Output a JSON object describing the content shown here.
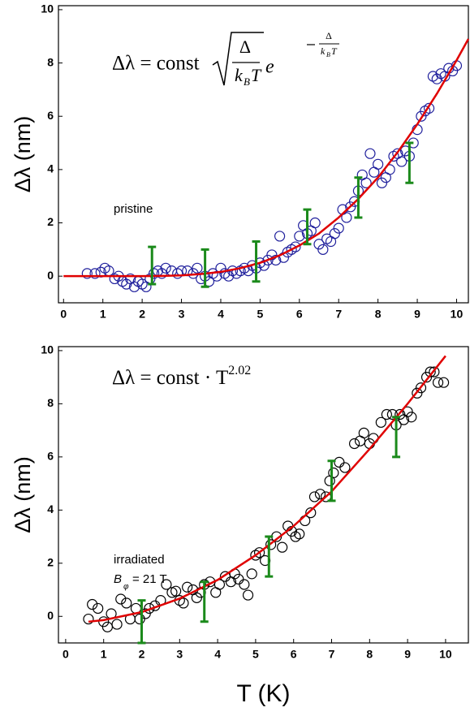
{
  "chart_data": [
    {
      "type": "scatter",
      "ylabel": "Δλ (nm)",
      "annotations": {
        "sample": "pristine",
        "lhs": "Δλ = const",
        "num": "Δ",
        "den_k": "k",
        "den_b": "B",
        "den_t": "T",
        "exp_base": "e",
        "exp_num": "Δ",
        "exp_k": "k",
        "exp_b": "B",
        "exp_t": "T"
      },
      "xlim": [
        -0.13,
        10.3
      ],
      "ylim": [
        -1,
        10.15
      ],
      "xticks": [
        0,
        1,
        2,
        3,
        4,
        5,
        6,
        7,
        8,
        9,
        10
      ],
      "yticks": [
        0,
        2,
        4,
        6,
        8,
        10
      ],
      "grid": false,
      "series": [
        {
          "type": "scatter",
          "color": "#1f1f9c",
          "x": [
            0.6,
            0.8,
            0.95,
            1.05,
            1.15,
            1.3,
            1.4,
            1.5,
            1.6,
            1.7,
            1.8,
            1.9,
            2.0,
            2.1,
            2.2,
            2.3,
            2.4,
            2.5,
            2.6,
            2.75,
            2.9,
            3.0,
            3.15,
            3.3,
            3.4,
            3.5,
            3.6,
            3.7,
            3.8,
            3.9,
            4.0,
            4.1,
            4.2,
            4.3,
            4.4,
            4.5,
            4.6,
            4.7,
            4.8,
            4.9,
            5.0,
            5.1,
            5.2,
            5.3,
            5.4,
            5.5,
            5.6,
            5.7,
            5.8,
            5.9,
            6.0,
            6.1,
            6.2,
            6.3,
            6.4,
            6.5,
            6.6,
            6.7,
            6.8,
            6.9,
            7.0,
            7.1,
            7.2,
            7.3,
            7.4,
            7.5,
            7.6,
            7.7,
            7.8,
            7.9,
            8.0,
            8.1,
            8.2,
            8.3,
            8.4,
            8.5,
            8.6,
            8.7,
            8.8,
            8.9,
            9.0,
            9.1,
            9.2,
            9.3,
            9.4,
            9.5,
            9.6,
            9.7,
            9.8,
            9.9,
            10.0
          ],
          "values": [
            0.1,
            0.1,
            0.15,
            0.3,
            0.2,
            -0.1,
            0.0,
            -0.2,
            -0.3,
            -0.1,
            -0.4,
            -0.2,
            -0.3,
            -0.4,
            -0.1,
            0.1,
            0.2,
            0.1,
            0.3,
            0.2,
            0.1,
            0.2,
            0.2,
            0.1,
            0.3,
            -0.1,
            0.0,
            -0.2,
            0.1,
            0.0,
            0.3,
            0.1,
            0.0,
            0.2,
            0.1,
            0.2,
            0.3,
            0.2,
            0.4,
            0.3,
            0.5,
            0.4,
            0.6,
            0.8,
            0.6,
            1.5,
            0.7,
            0.9,
            1.0,
            1.1,
            1.5,
            1.9,
            1.6,
            1.7,
            2.0,
            1.2,
            1.0,
            1.4,
            1.3,
            1.6,
            1.8,
            2.5,
            2.2,
            2.6,
            2.8,
            3.2,
            3.8,
            3.5,
            4.6,
            3.9,
            4.2,
            3.5,
            3.7,
            4.0,
            4.5,
            4.6,
            4.3,
            4.7,
            4.5,
            5.0,
            5.5,
            6.0,
            6.2,
            6.3,
            7.5,
            7.4,
            7.6,
            7.5,
            7.8,
            7.7,
            7.9
          ]
        },
        {
          "type": "line",
          "color": "#e00000",
          "x": [
            0,
            1,
            2,
            2.5,
            3,
            3.5,
            4,
            4.5,
            5,
            5.5,
            6,
            6.5,
            7,
            7.5,
            8,
            8.5,
            9,
            9.5,
            10,
            10.3
          ],
          "values": [
            0,
            0,
            0,
            0.01,
            0.03,
            0.08,
            0.16,
            0.3,
            0.5,
            0.78,
            1.15,
            1.6,
            2.2,
            2.9,
            3.7,
            4.65,
            5.7,
            6.85,
            8.1,
            8.9
          ]
        },
        {
          "type": "errorbar",
          "color": "#1b8a1b",
          "x": [
            2.25,
            3.6,
            4.9,
            6.2,
            7.5,
            8.8
          ],
          "values": [
            0.4,
            0.3,
            0.55,
            1.85,
            2.95,
            4.25
          ],
          "errors": [
            0.7,
            0.7,
            0.75,
            0.65,
            0.75,
            0.75
          ]
        }
      ]
    },
    {
      "type": "scatter",
      "ylabel": "Δλ (nm)",
      "xlabel": "T (K)",
      "annotations": {
        "sample": "irradiated",
        "field_symbol": "B",
        "field_sub": "φ",
        "field_value": "= 21 T",
        "lhs": "Δλ = const · T",
        "exponent": "2.02"
      },
      "xlim": [
        -0.19,
        10.6
      ],
      "ylim": [
        -1,
        10.15
      ],
      "xticks": [
        0,
        1,
        2,
        3,
        4,
        5,
        6,
        7,
        8,
        9,
        10
      ],
      "yticks": [
        0,
        2,
        4,
        6,
        8,
        10
      ],
      "grid": false,
      "series": [
        {
          "type": "scatter",
          "color": "#000000",
          "x": [
            0.6,
            0.7,
            0.85,
            1.0,
            1.1,
            1.2,
            1.35,
            1.45,
            1.6,
            1.7,
            1.85,
            1.95,
            2.1,
            2.2,
            2.35,
            2.5,
            2.65,
            2.8,
            2.9,
            3.0,
            3.1,
            3.2,
            3.35,
            3.45,
            3.55,
            3.65,
            3.8,
            3.95,
            4.05,
            4.2,
            4.35,
            4.45,
            4.55,
            4.7,
            4.8,
            4.9,
            5.0,
            5.1,
            5.25,
            5.4,
            5.55,
            5.7,
            5.85,
            5.95,
            6.05,
            6.15,
            6.3,
            6.45,
            6.55,
            6.7,
            6.85,
            6.95,
            7.05,
            7.2,
            7.35,
            7.6,
            7.75,
            7.85,
            8.0,
            8.1,
            8.3,
            8.45,
            8.6,
            8.7,
            8.8,
            8.9,
            9.0,
            9.1,
            9.25,
            9.35,
            9.5,
            9.6,
            9.7,
            9.8,
            9.95
          ],
          "values": [
            -0.1,
            0.45,
            0.3,
            -0.2,
            -0.4,
            0.1,
            -0.3,
            0.65,
            0.5,
            -0.1,
            0.3,
            -0.1,
            0.1,
            0.3,
            0.4,
            0.6,
            1.2,
            0.9,
            0.95,
            0.6,
            0.5,
            1.1,
            1.0,
            0.7,
            0.9,
            1.2,
            1.3,
            0.9,
            1.2,
            1.5,
            1.3,
            1.6,
            1.4,
            1.2,
            0.8,
            1.6,
            2.3,
            2.4,
            2.1,
            2.7,
            3.0,
            2.6,
            3.4,
            3.2,
            3.0,
            3.1,
            3.6,
            3.9,
            4.5,
            4.6,
            4.5,
            5.1,
            5.4,
            5.8,
            5.6,
            6.5,
            6.6,
            6.9,
            6.5,
            6.7,
            7.3,
            7.6,
            7.6,
            7.2,
            7.6,
            7.4,
            7.7,
            7.5,
            8.4,
            8.6,
            9.0,
            9.2,
            9.2,
            8.8,
            8.8
          ]
        },
        {
          "type": "line",
          "color": "#e00000",
          "x": [
            0.6,
            1,
            2,
            3,
            4,
            5,
            6,
            7,
            8,
            9,
            10
          ],
          "values": [
            -0.2,
            -0.14,
            0.16,
            0.67,
            1.37,
            2.3,
            3.4,
            4.7,
            6.3,
            8.0,
            9.8
          ]
        },
        {
          "type": "errorbar",
          "color": "#1b8a1b",
          "x": [
            2.0,
            3.65,
            5.35,
            7.0,
            8.7
          ],
          "values": [
            -0.2,
            0.55,
            2.25,
            5.1,
            6.75
          ],
          "errors": [
            0.8,
            0.75,
            0.75,
            0.75,
            0.75
          ]
        }
      ]
    }
  ]
}
